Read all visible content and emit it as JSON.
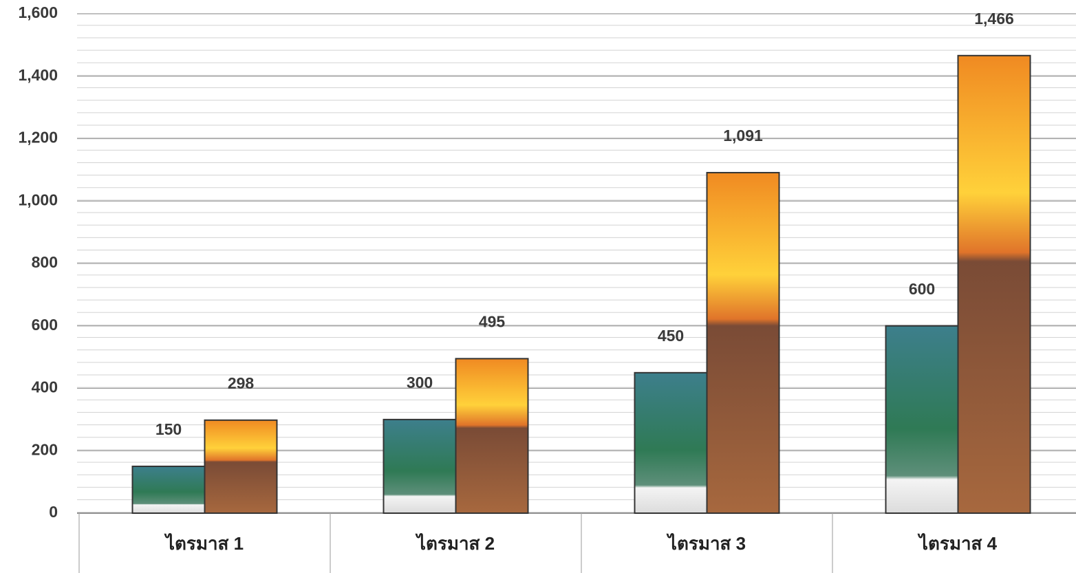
{
  "chart_data": {
    "type": "bar",
    "categories": [
      "ไตรมาส 1",
      "ไตรมาส 2",
      "ไตรมาส 3",
      "ไตรมาส 4"
    ],
    "series": [
      {
        "color": "#3d7f8c",
        "values": [
          150,
          300,
          450,
          600
        ]
      },
      {
        "color": "#f29a2e",
        "values": [
          298,
          495,
          1091,
          1466
        ],
        "value_labels": [
          "298",
          "495",
          "1,091",
          "1,466"
        ]
      }
    ],
    "ylim": [
      0,
      1600
    ],
    "yticks": [
      0,
      200,
      400,
      600,
      800,
      {
        "value": 1000,
        "label": "1,000"
      },
      {
        "value": 1200,
        "label": "1,200"
      },
      {
        "value": 1400,
        "label": "1,400"
      },
      {
        "value": 1600,
        "label": "1,600"
      }
    ],
    "grid": true
  }
}
